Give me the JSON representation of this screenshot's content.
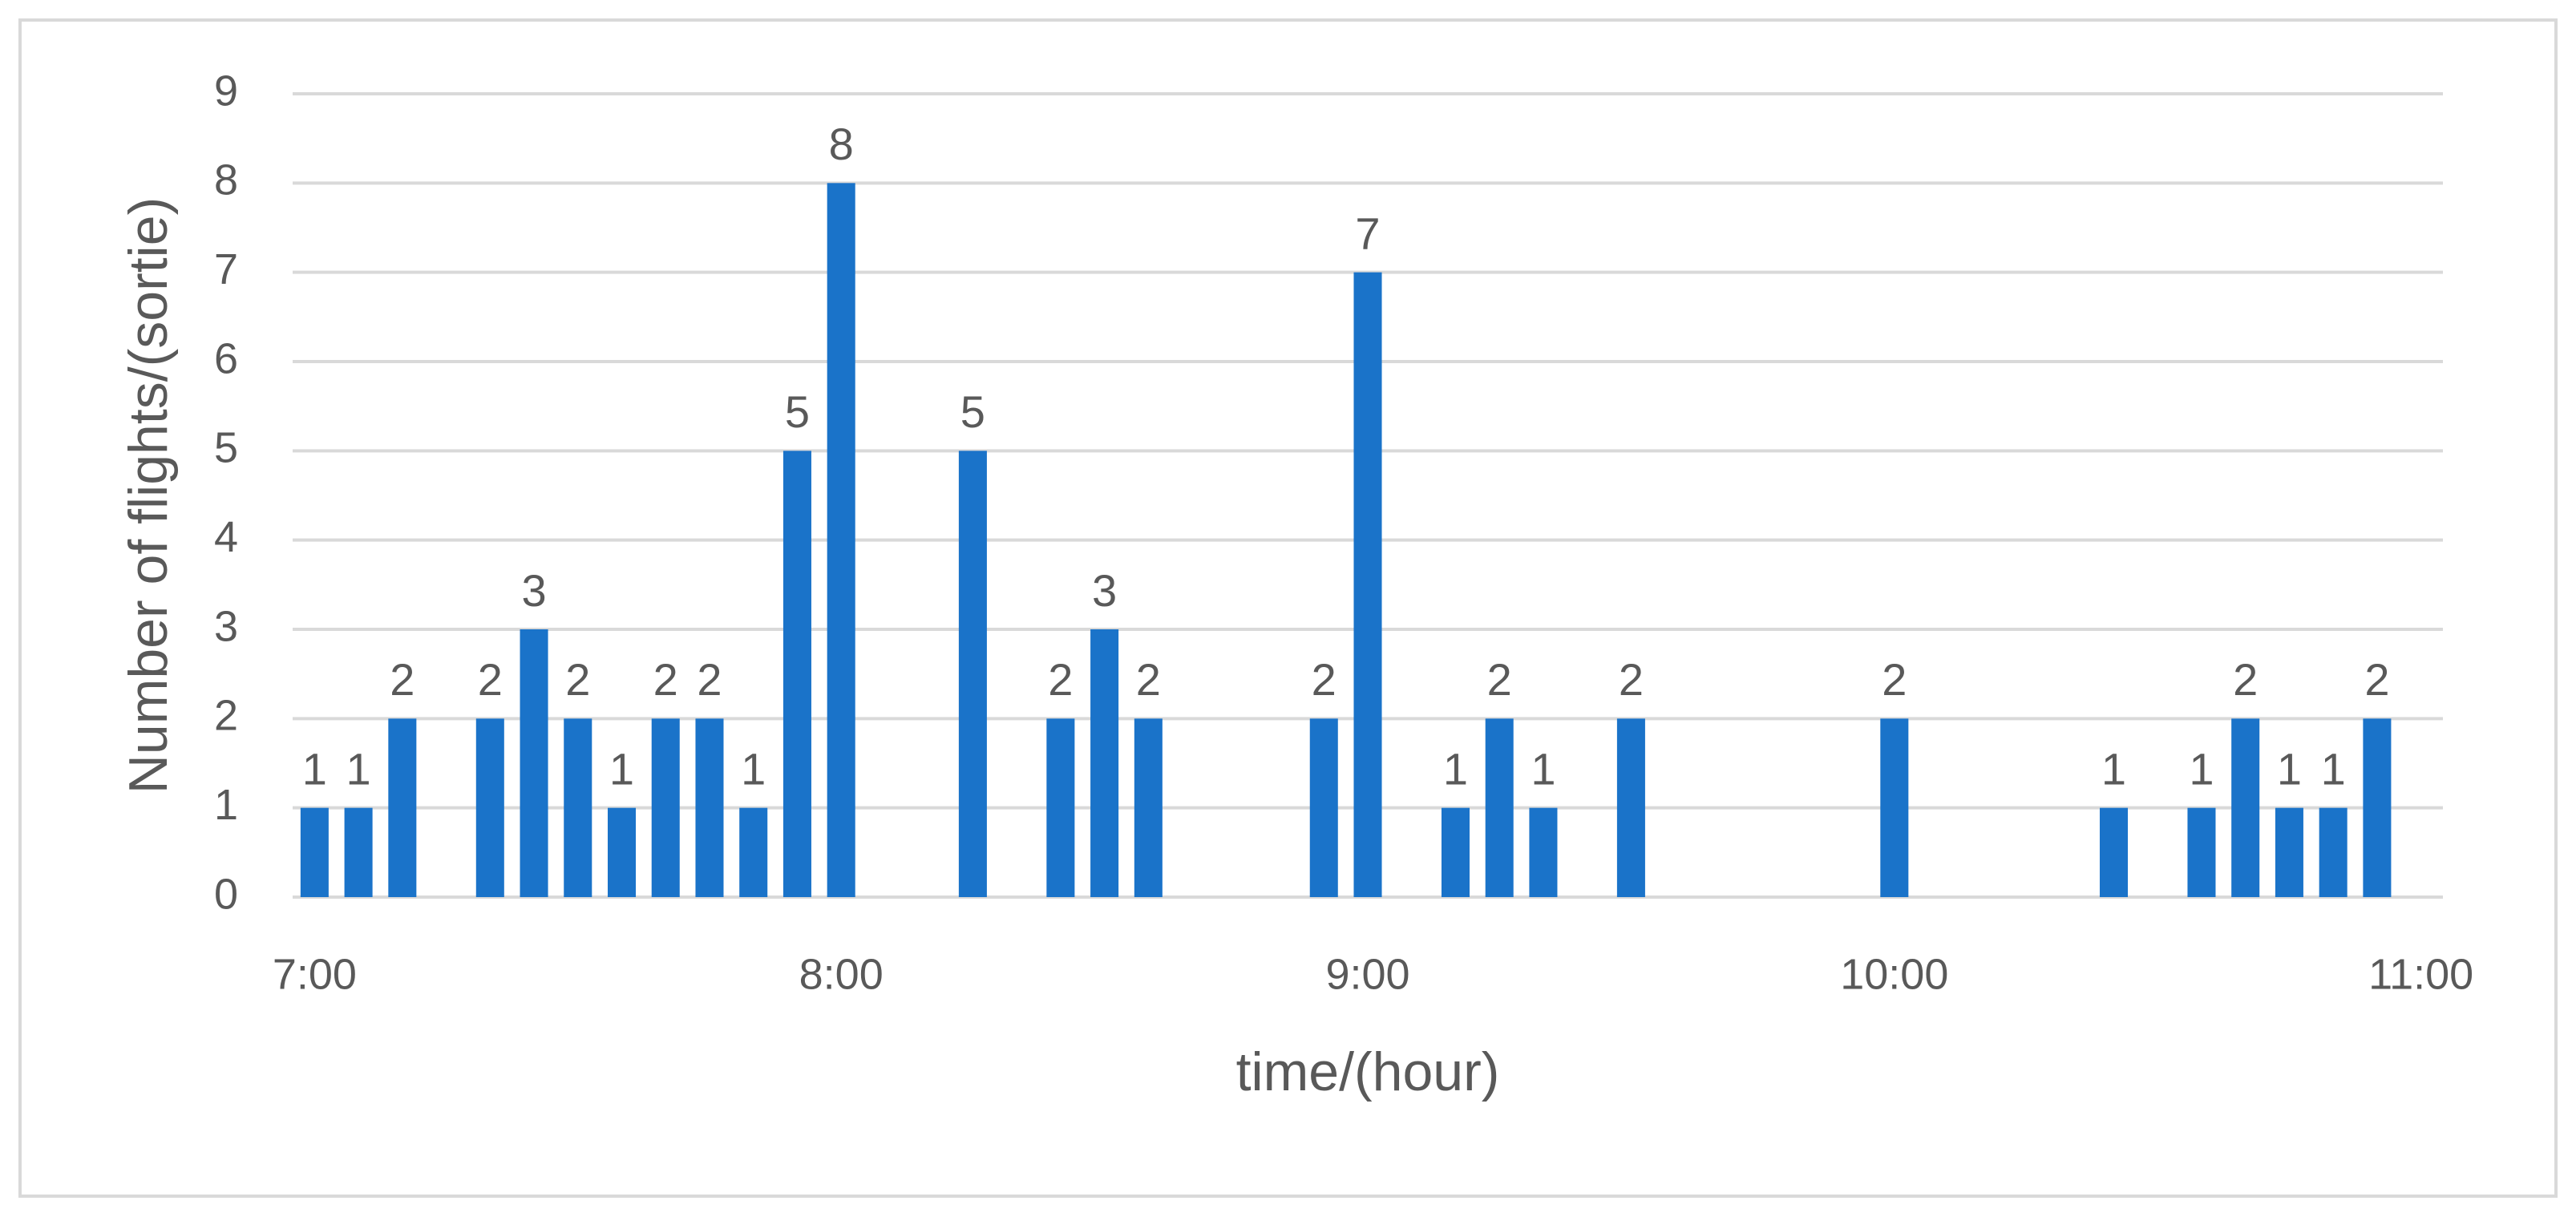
{
  "chart_data": {
    "type": "bar",
    "x_label": "time/(hour)",
    "y_label": "Number of flights/(sortie)",
    "categories": [
      "7:00",
      null,
      null,
      null,
      null,
      null,
      null,
      null,
      null,
      null,
      null,
      null,
      "8:00",
      null,
      null,
      null,
      null,
      null,
      null,
      null,
      null,
      null,
      null,
      null,
      "9:00",
      null,
      null,
      null,
      null,
      null,
      null,
      null,
      null,
      null,
      null,
      null,
      "10:00",
      null,
      null,
      null,
      null,
      null,
      null,
      null,
      null,
      null,
      null,
      null,
      "11:00"
    ],
    "values": [
      1,
      1,
      2,
      null,
      2,
      3,
      2,
      1,
      2,
      2,
      1,
      5,
      8,
      null,
      null,
      5,
      null,
      2,
      3,
      2,
      null,
      null,
      null,
      2,
      7,
      null,
      1,
      2,
      1,
      null,
      2,
      null,
      null,
      null,
      null,
      null,
      2,
      null,
      null,
      null,
      null,
      1,
      null,
      1,
      2,
      1,
      1,
      2,
      null
    ],
    "color": "#1a73c9",
    "ylim": [
      0,
      9
    ],
    "yticks": [
      0,
      1,
      2,
      3,
      4,
      5,
      6,
      7,
      8,
      9
    ],
    "grid": true
  }
}
